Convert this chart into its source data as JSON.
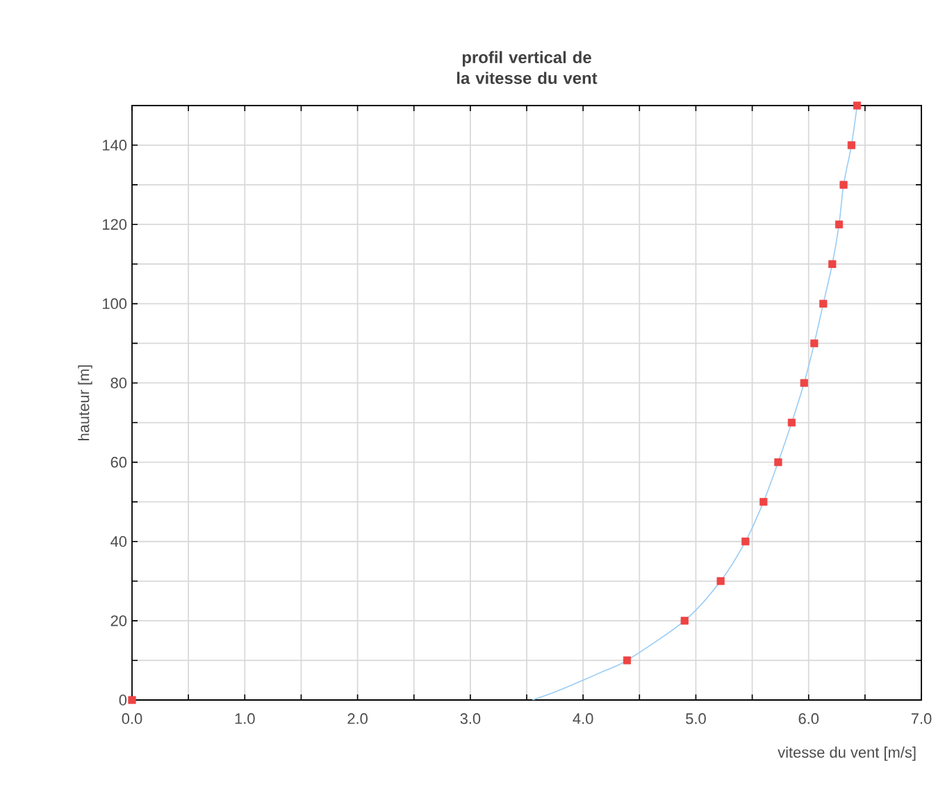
{
  "chart_data": {
    "type": "scatter",
    "title": "profil vertical de la vitesse du vent",
    "xlabel": "vitesse du vent [m/s]",
    "ylabel": "hauteur [m]",
    "xlim": [
      0,
      7
    ],
    "ylim": [
      0,
      150
    ],
    "xticks": [
      {
        "value": 0,
        "label": "0.0"
      },
      {
        "value": 0.5,
        "label": null
      },
      {
        "value": 1,
        "label": "1.0"
      },
      {
        "value": 1.5,
        "label": null
      },
      {
        "value": 2,
        "label": "2.0"
      },
      {
        "value": 2.5,
        "label": null
      },
      {
        "value": 3,
        "label": "3.0"
      },
      {
        "value": 3.5,
        "label": null
      },
      {
        "value": 4,
        "label": "4.0"
      },
      {
        "value": 4.5,
        "label": null
      },
      {
        "value": 5,
        "label": "5.0"
      },
      {
        "value": 5.5,
        "label": null
      },
      {
        "value": 6,
        "label": "6.0"
      },
      {
        "value": 6.5,
        "label": null
      },
      {
        "value": 7,
        "label": "7.0"
      }
    ],
    "yticks": [
      0,
      {
        "value": 10,
        "label": null
      },
      20,
      {
        "value": 30,
        "label": null
      },
      40,
      {
        "value": 50,
        "label": null
      },
      60,
      {
        "value": 70,
        "label": null
      },
      80,
      {
        "value": 90,
        "label": null
      },
      100,
      {
        "value": 110,
        "label": null
      },
      120,
      {
        "value": 130,
        "label": null
      },
      140
    ],
    "grid": true,
    "series": [
      {
        "type": "line",
        "marker": "none",
        "color": "#99ccf5",
        "x": [
          3.55,
          3.75,
          4.0,
          4.2,
          4.39,
          4.9,
          5.22,
          5.44,
          5.6,
          5.73,
          5.85,
          5.96,
          6.05,
          6.13,
          6.21,
          6.27,
          6.31,
          6.38,
          6.43
        ],
        "values": [
          0,
          2,
          5,
          7.5,
          10,
          20,
          30,
          40,
          50,
          60,
          70,
          80,
          90,
          100,
          110,
          120,
          130,
          140,
          150
        ]
      },
      {
        "marker": "square",
        "color": "#ee4444",
        "x": [
          0,
          4.39,
          4.9,
          5.22,
          5.44,
          5.6,
          5.73,
          5.85,
          5.96,
          6.05,
          6.13,
          6.21,
          6.27,
          6.31,
          6.38,
          6.43
        ],
        "values": [
          0,
          10,
          20,
          30,
          40,
          50,
          60,
          70,
          80,
          90,
          100,
          110,
          120,
          130,
          140,
          150
        ]
      }
    ]
  }
}
